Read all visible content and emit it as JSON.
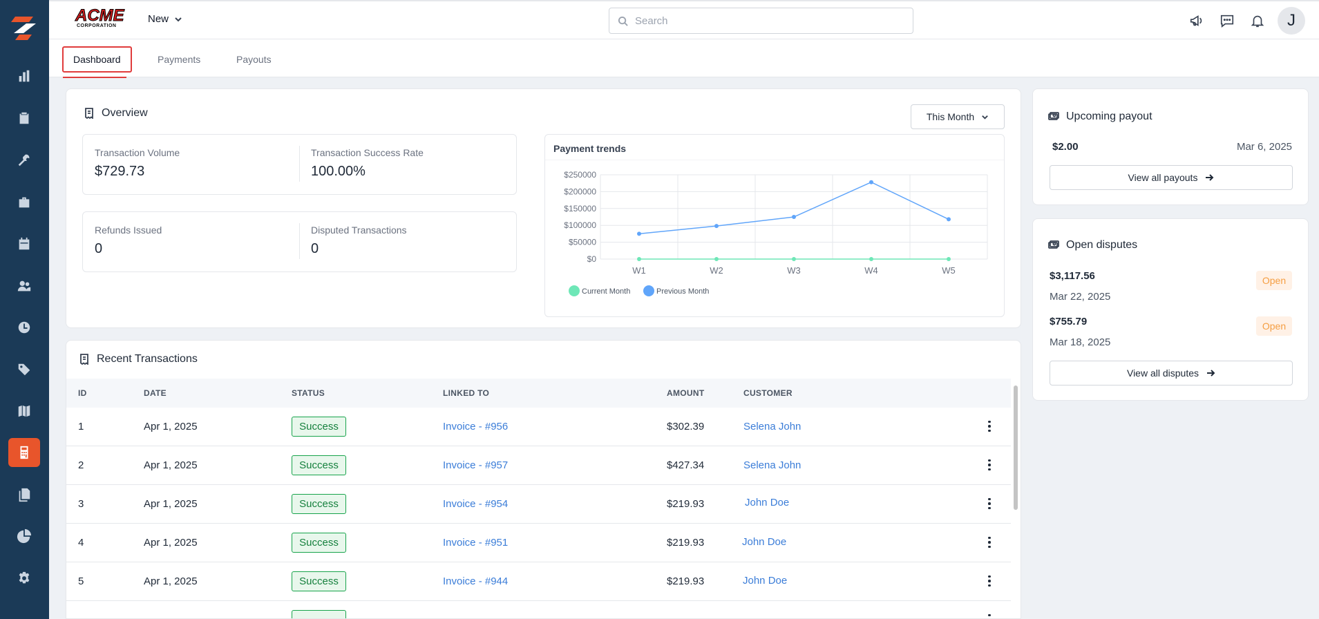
{
  "header": {
    "brand_main": "ACME",
    "brand_sub": "CORPORATION",
    "new_label": "New",
    "search_placeholder": "Search",
    "avatar_initial": "J"
  },
  "tabs": [
    {
      "label": "Dashboard",
      "active": true
    },
    {
      "label": "Payments",
      "active": false
    },
    {
      "label": "Payouts",
      "active": false
    }
  ],
  "overview": {
    "title": "Overview",
    "period_label": "This Month",
    "stats": [
      {
        "label": "Transaction Volume",
        "value": "$729.73"
      },
      {
        "label": "Transaction Success Rate",
        "value": "100.00%"
      },
      {
        "label": "Refunds Issued",
        "value": "0"
      },
      {
        "label": "Disputed Transactions",
        "value": "0"
      }
    ]
  },
  "chart_data": {
    "type": "line",
    "title": "Payment trends",
    "categories": [
      "W1",
      "W2",
      "W3",
      "W4",
      "W5"
    ],
    "y_ticks": [
      "$0",
      "$50000",
      "$100000",
      "$150000",
      "$200000",
      "$250000"
    ],
    "ylim": [
      0,
      250000
    ],
    "series": [
      {
        "name": "Current Month",
        "values": [
          0,
          0,
          0,
          0,
          0
        ],
        "color": "#6ee7b7"
      },
      {
        "name": "Previous Month",
        "values": [
          75000,
          98000,
          125000,
          228000,
          118000
        ],
        "color": "#60a5fa"
      }
    ],
    "grid": true,
    "legend_position": "bottom-left"
  },
  "upcoming_payout": {
    "title": "Upcoming payout",
    "amount": "$2.00",
    "date": "Mar 6, 2025",
    "button_label": "View all payouts"
  },
  "open_disputes": {
    "title": "Open disputes",
    "items": [
      {
        "amount": "$3,117.56",
        "date": "Mar 22, 2025",
        "status": "Open"
      },
      {
        "amount": "$755.79",
        "date": "Mar 18, 2025",
        "status": "Open"
      }
    ],
    "button_label": "View all disputes"
  },
  "transactions": {
    "title": "Recent Transactions",
    "columns": [
      "ID",
      "DATE",
      "STATUS",
      "LINKED TO",
      "AMOUNT",
      "CUSTOMER"
    ],
    "rows": [
      {
        "id": "1",
        "date": "Apr 1, 2025",
        "status": "Success",
        "linked": "Invoice - #956",
        "amount": "$302.39",
        "customer": "Selena John"
      },
      {
        "id": "2",
        "date": "Apr 1, 2025",
        "status": "Success",
        "linked": "Invoice - #957",
        "amount": "$427.34",
        "customer": "Selena John"
      },
      {
        "id": "3",
        "date": "Apr 1, 2025",
        "status": "Success",
        "linked": "Invoice - #954",
        "amount": "$219.93",
        "customer": "John Doe"
      },
      {
        "id": "4",
        "date": "Apr 1, 2025",
        "status": "Success",
        "linked": "Invoice - #951",
        "amount": "$219.93",
        "customer": "John Doe"
      },
      {
        "id": "5",
        "date": "Apr 1, 2025",
        "status": "Success",
        "linked": "Invoice - #944",
        "amount": "$219.93",
        "customer": "John Doe"
      }
    ]
  },
  "sidebar": {
    "items": [
      {
        "icon": "bar-chart-icon"
      },
      {
        "icon": "clipboard-check-icon"
      },
      {
        "icon": "tools-icon"
      },
      {
        "icon": "briefcase-icon"
      },
      {
        "icon": "calendar-icon"
      },
      {
        "icon": "users-icon"
      },
      {
        "icon": "clock-icon"
      },
      {
        "icon": "tag-icon"
      },
      {
        "icon": "map-icon"
      },
      {
        "icon": "calculator-icon",
        "active": true
      },
      {
        "icon": "files-icon"
      },
      {
        "icon": "pie-chart-icon"
      },
      {
        "icon": "settings-gear-icon"
      }
    ]
  },
  "colors": {
    "sidebar_bg": "#1b3a57",
    "accent": "#e8552b",
    "link": "#3b7dd8",
    "success": "#16a34a",
    "warning": "#f59e42"
  }
}
